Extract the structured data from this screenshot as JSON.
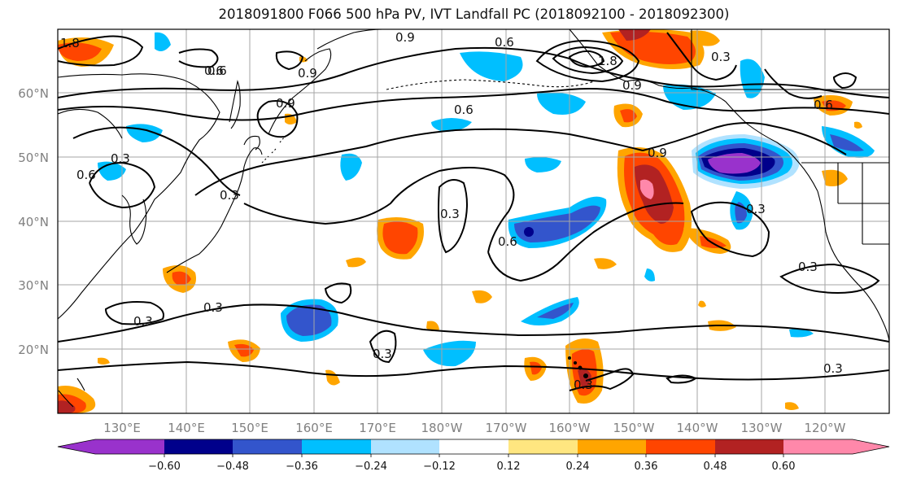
{
  "title": "2018091800 F066 500 hPa PV, IVT Landfall PC (2018092100 - 2018092300)",
  "lat_labels": [
    "60°N",
    "50°N",
    "40°N",
    "30°N",
    "20°N"
  ],
  "lon_labels": [
    "130°E",
    "140°E",
    "150°E",
    "160°E",
    "170°E",
    "180°W",
    "170°W",
    "160°W",
    "150°W",
    "140°W",
    "130°W",
    "120°W"
  ],
  "colorbar": {
    "ticks": [
      "−0.60",
      "−0.48",
      "−0.36",
      "−0.24",
      "−0.12",
      "0.12",
      "0.24",
      "0.36",
      "0.48",
      "0.60"
    ],
    "colors": [
      "#9932cc",
      "#00008b",
      "#3355cc",
      "#00bfff",
      "#b0e2ff",
      "#ffffff",
      "#ffe680",
      "#ffa500",
      "#ff4500",
      "#b22222",
      "#ff88aa"
    ]
  },
  "pv_contour_labels": [
    "0.9",
    "0.6",
    "0.9",
    "0.3",
    "0.6",
    "0.9",
    "0.9",
    "1.8",
    "0.6",
    "0.6",
    "0.3",
    "0.6",
    "0.3",
    "0.6",
    "0.3",
    "0.3",
    "0.3",
    "0.3",
    "0.3",
    "0.3",
    "0.3",
    "0.3",
    "0.9",
    "0.6",
    "1.8"
  ]
}
